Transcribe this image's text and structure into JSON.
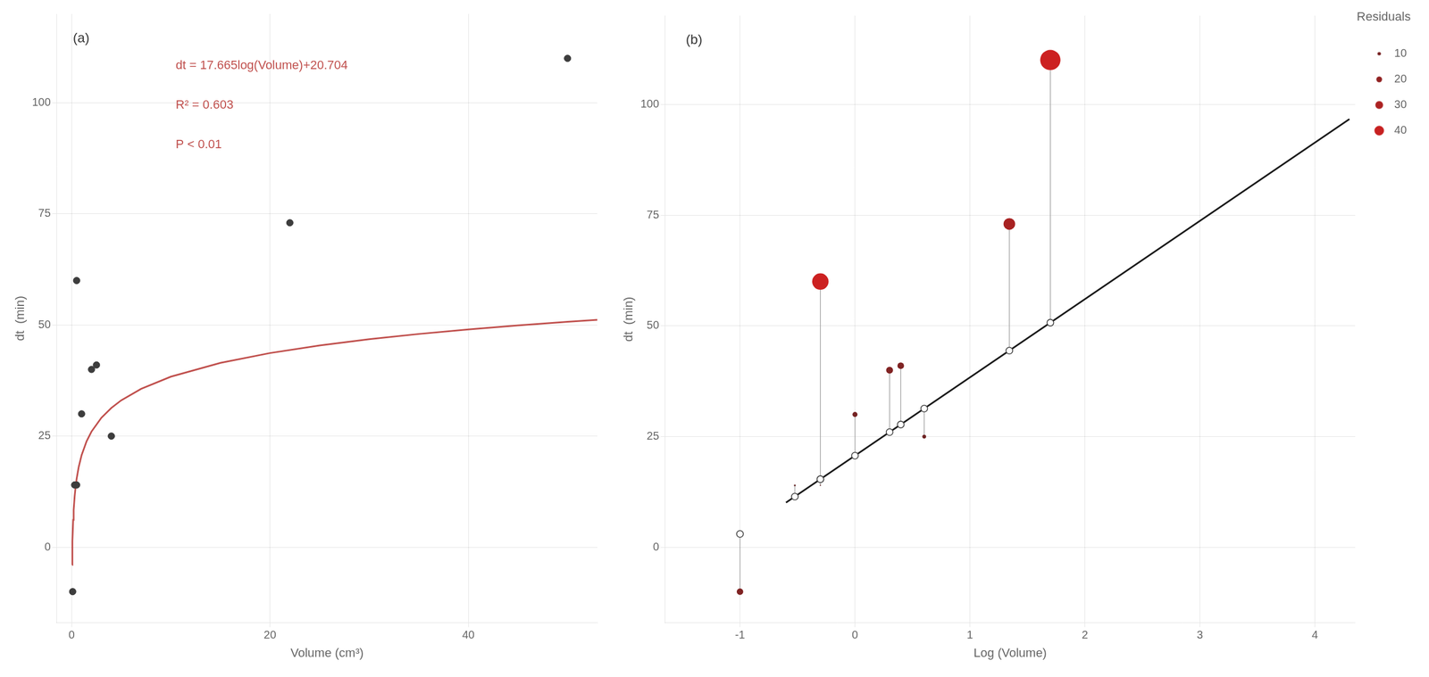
{
  "chart_data": [
    {
      "type": "scatter",
      "panel_label": "(a)",
      "annotations": [
        {
          "text": "dt = 17.665log(Volume)+20.704",
          "color": "#c0504d"
        },
        {
          "text": "R² = 0.603",
          "color": "#c0504d"
        },
        {
          "text": "P < 0.01",
          "color": "#c0504d"
        }
      ],
      "xlabel": "Volume (cm³)",
      "ylabel": "dt  (min)",
      "series": [
        {
          "type": "line",
          "color": "#c0504d",
          "x": [
            0.04,
            0.06,
            0.08,
            0.1,
            0.15,
            0.2,
            0.3,
            0.4,
            0.5,
            0.7,
            1,
            1.5,
            2,
            3,
            4,
            5,
            7,
            10,
            15,
            20,
            25,
            30,
            35,
            40,
            45,
            50,
            53
          ],
          "values": [
            -3.991,
            -0.88,
            1.327,
            3.039,
            6.15,
            8.357,
            11.467,
            13.674,
            15.386,
            17.968,
            20.704,
            23.815,
            26.022,
            29.132,
            31.339,
            33.051,
            35.633,
            38.369,
            41.48,
            43.687,
            45.399,
            46.797,
            47.98,
            49.004,
            49.908,
            50.716,
            51.163
          ]
        },
        {
          "type": "scatter",
          "color": "#3d3d3d",
          "x": [
            0.1,
            0.3,
            0.5,
            0.5,
            1.0,
            2.0,
            2.5,
            4.0,
            22.0,
            50.0
          ],
          "values": [
            -10,
            14,
            14,
            60,
            30,
            40,
            41,
            25,
            73,
            110
          ]
        }
      ],
      "xlim": [
        -1.5,
        53
      ],
      "ylim": [
        -17,
        120
      ],
      "xticks": [
        0,
        20,
        40
      ],
      "yticks": [
        0,
        25,
        50,
        75,
        100
      ],
      "grid": true
    },
    {
      "type": "scatter",
      "panel_label": "(b)",
      "xlabel": "Log (Volume)",
      "ylabel": "dt  (min)",
      "series": [
        {
          "type": "segments",
          "color": "#999999",
          "x": [
            -1,
            -0.52288,
            -0.30103,
            -0.30103,
            0,
            0.30103,
            0.39794,
            0.60206,
            1.34242,
            1.69897
          ],
          "values": [
            -10,
            14,
            14,
            60,
            30,
            40,
            41,
            25,
            73,
            110
          ],
          "values_end": [
            3.039,
            11.467,
            15.386,
            15.386,
            20.704,
            26.022,
            27.734,
            31.339,
            44.418,
            50.716
          ]
        },
        {
          "type": "line",
          "color": "#1a1a1a",
          "x": [
            -0.6,
            4.3
          ],
          "values": [
            10.105,
            96.6635
          ]
        },
        {
          "type": "scatter",
          "marker": "open_circle",
          "color": "#404040",
          "x": [
            -1,
            -0.52288,
            -0.30103,
            -0.30103,
            0,
            0.30103,
            0.39794,
            0.60206,
            1.34242,
            1.69897
          ],
          "values": [
            3.039,
            11.467,
            15.386,
            15.386,
            20.704,
            26.022,
            27.734,
            31.339,
            44.418,
            50.716
          ]
        },
        {
          "type": "bubble",
          "x": [
            -1,
            -0.52288,
            -0.30103,
            -0.30103,
            0,
            0.30103,
            0.39794,
            0.60206,
            1.34242,
            1.69897
          ],
          "values": [
            -10,
            14,
            14,
            60,
            30,
            40,
            41,
            25,
            73,
            110
          ],
          "sizes": [
            13.039,
            2.533,
            1.386,
            44.614,
            9.296,
            13.978,
            13.266,
            6.339,
            28.582,
            59.284
          ],
          "colors": [
            "#7f2323",
            "#632424",
            "#602424",
            "#cc2121",
            "#752323",
            "#812323",
            "#7f2323",
            "#6d2323",
            "#a82222",
            "#cc2121"
          ]
        }
      ],
      "xlim": [
        -1.65,
        4.35
      ],
      "ylim": [
        -17,
        120
      ],
      "xticks": [
        -1,
        0,
        1,
        2,
        3,
        4
      ],
      "yticks": [
        0,
        25,
        50,
        75,
        100
      ],
      "grid": true,
      "legend": "right",
      "legend_title": "Residuals",
      "legend_entries": [
        {
          "label": "10",
          "size": 10,
          "color": "#772323"
        },
        {
          "label": "20",
          "size": 20,
          "color": "#912222"
        },
        {
          "label": "30",
          "size": 30,
          "color": "#ac2222"
        },
        {
          "label": "40",
          "size": 40,
          "color": "#c72121"
        }
      ]
    }
  ]
}
